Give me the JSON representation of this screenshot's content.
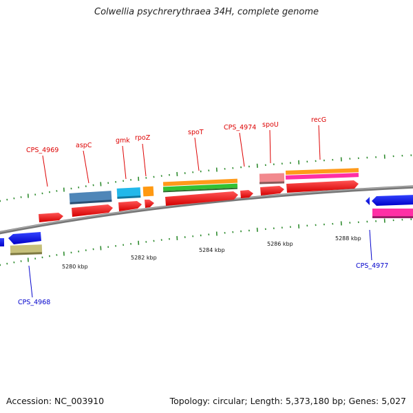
{
  "title": "Colwellia psychrerythraea 34H, complete genome",
  "footer": {
    "accession": "Accession: NC_003910",
    "summary": "Topology: circular; Length: 5,373,180 bp; Genes: 5,027"
  },
  "colors": {
    "forward_label": "#dd0000",
    "reverse_label": "#0000cc",
    "backbone": "#808080",
    "tick": "#2e8b2e"
  },
  "tick_labels": [
    "5280 kbp",
    "5282 kbp",
    "5284 kbp",
    "5286 kbp",
    "5288 kbp"
  ],
  "gene_labels": {
    "forward": [
      "CPS_4969",
      "aspC",
      "gmk",
      "rpoZ",
      "spoT",
      "CPS_4974",
      "spoU",
      "recG"
    ],
    "reverse": [
      "CPS_4968",
      "CPS_4977"
    ]
  }
}
